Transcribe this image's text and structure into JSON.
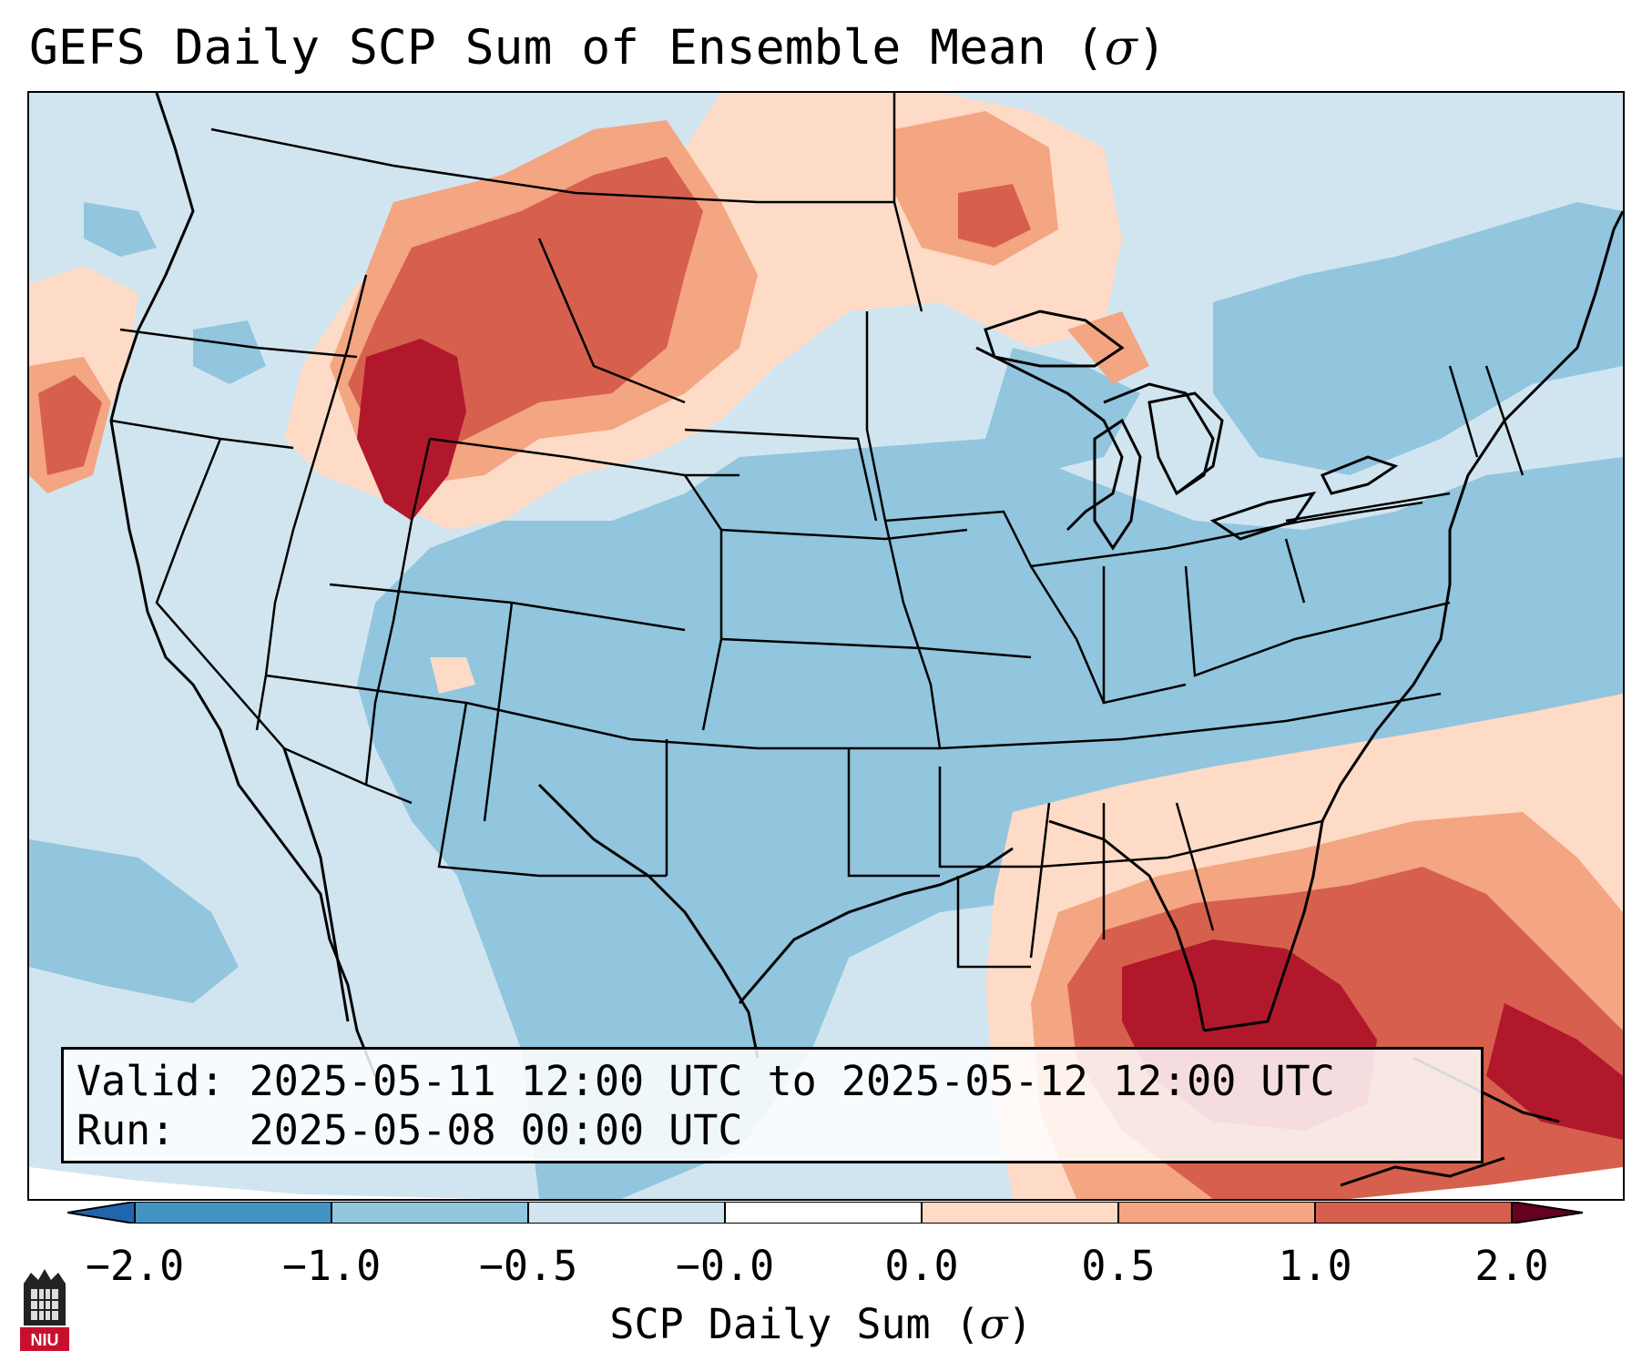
{
  "header": {
    "title": "GEFS Daily SCP Sum of Ensemble Mean (",
    "title_symbol": "σ",
    "title_close": ")"
  },
  "info": {
    "valid_line": "Valid: 2025-05-11 12:00 UTC to 2025-05-12 12:00 UTC",
    "run_line": "Run:   2025-05-08 00:00 UTC"
  },
  "colorbar": {
    "ticks": [
      "−2.0",
      "−1.0",
      "−0.5",
      "−0.0",
      "0.0",
      "0.5",
      "1.0",
      "2.0"
    ],
    "label": "SCP Daily Sum (",
    "label_symbol": "σ",
    "label_close": ")",
    "colors": [
      "#4393c3",
      "#92c5de",
      "#d1e5f0",
      "#ffffff",
      "#fddbc7",
      "#f4a582",
      "#d6604d",
      "#b2182b"
    ],
    "under_color": "#2166ac",
    "over_color": "#67001f"
  },
  "map": {
    "background": "#d1e5f0",
    "negative_mid": "#92c5de",
    "positive_light": "#fddbc7",
    "positive_mid": "#f4a582",
    "positive_strong": "#d6604d",
    "positive_max": "#b2182b"
  },
  "logo": {
    "text": "NIU",
    "color": "#c8102e"
  }
}
